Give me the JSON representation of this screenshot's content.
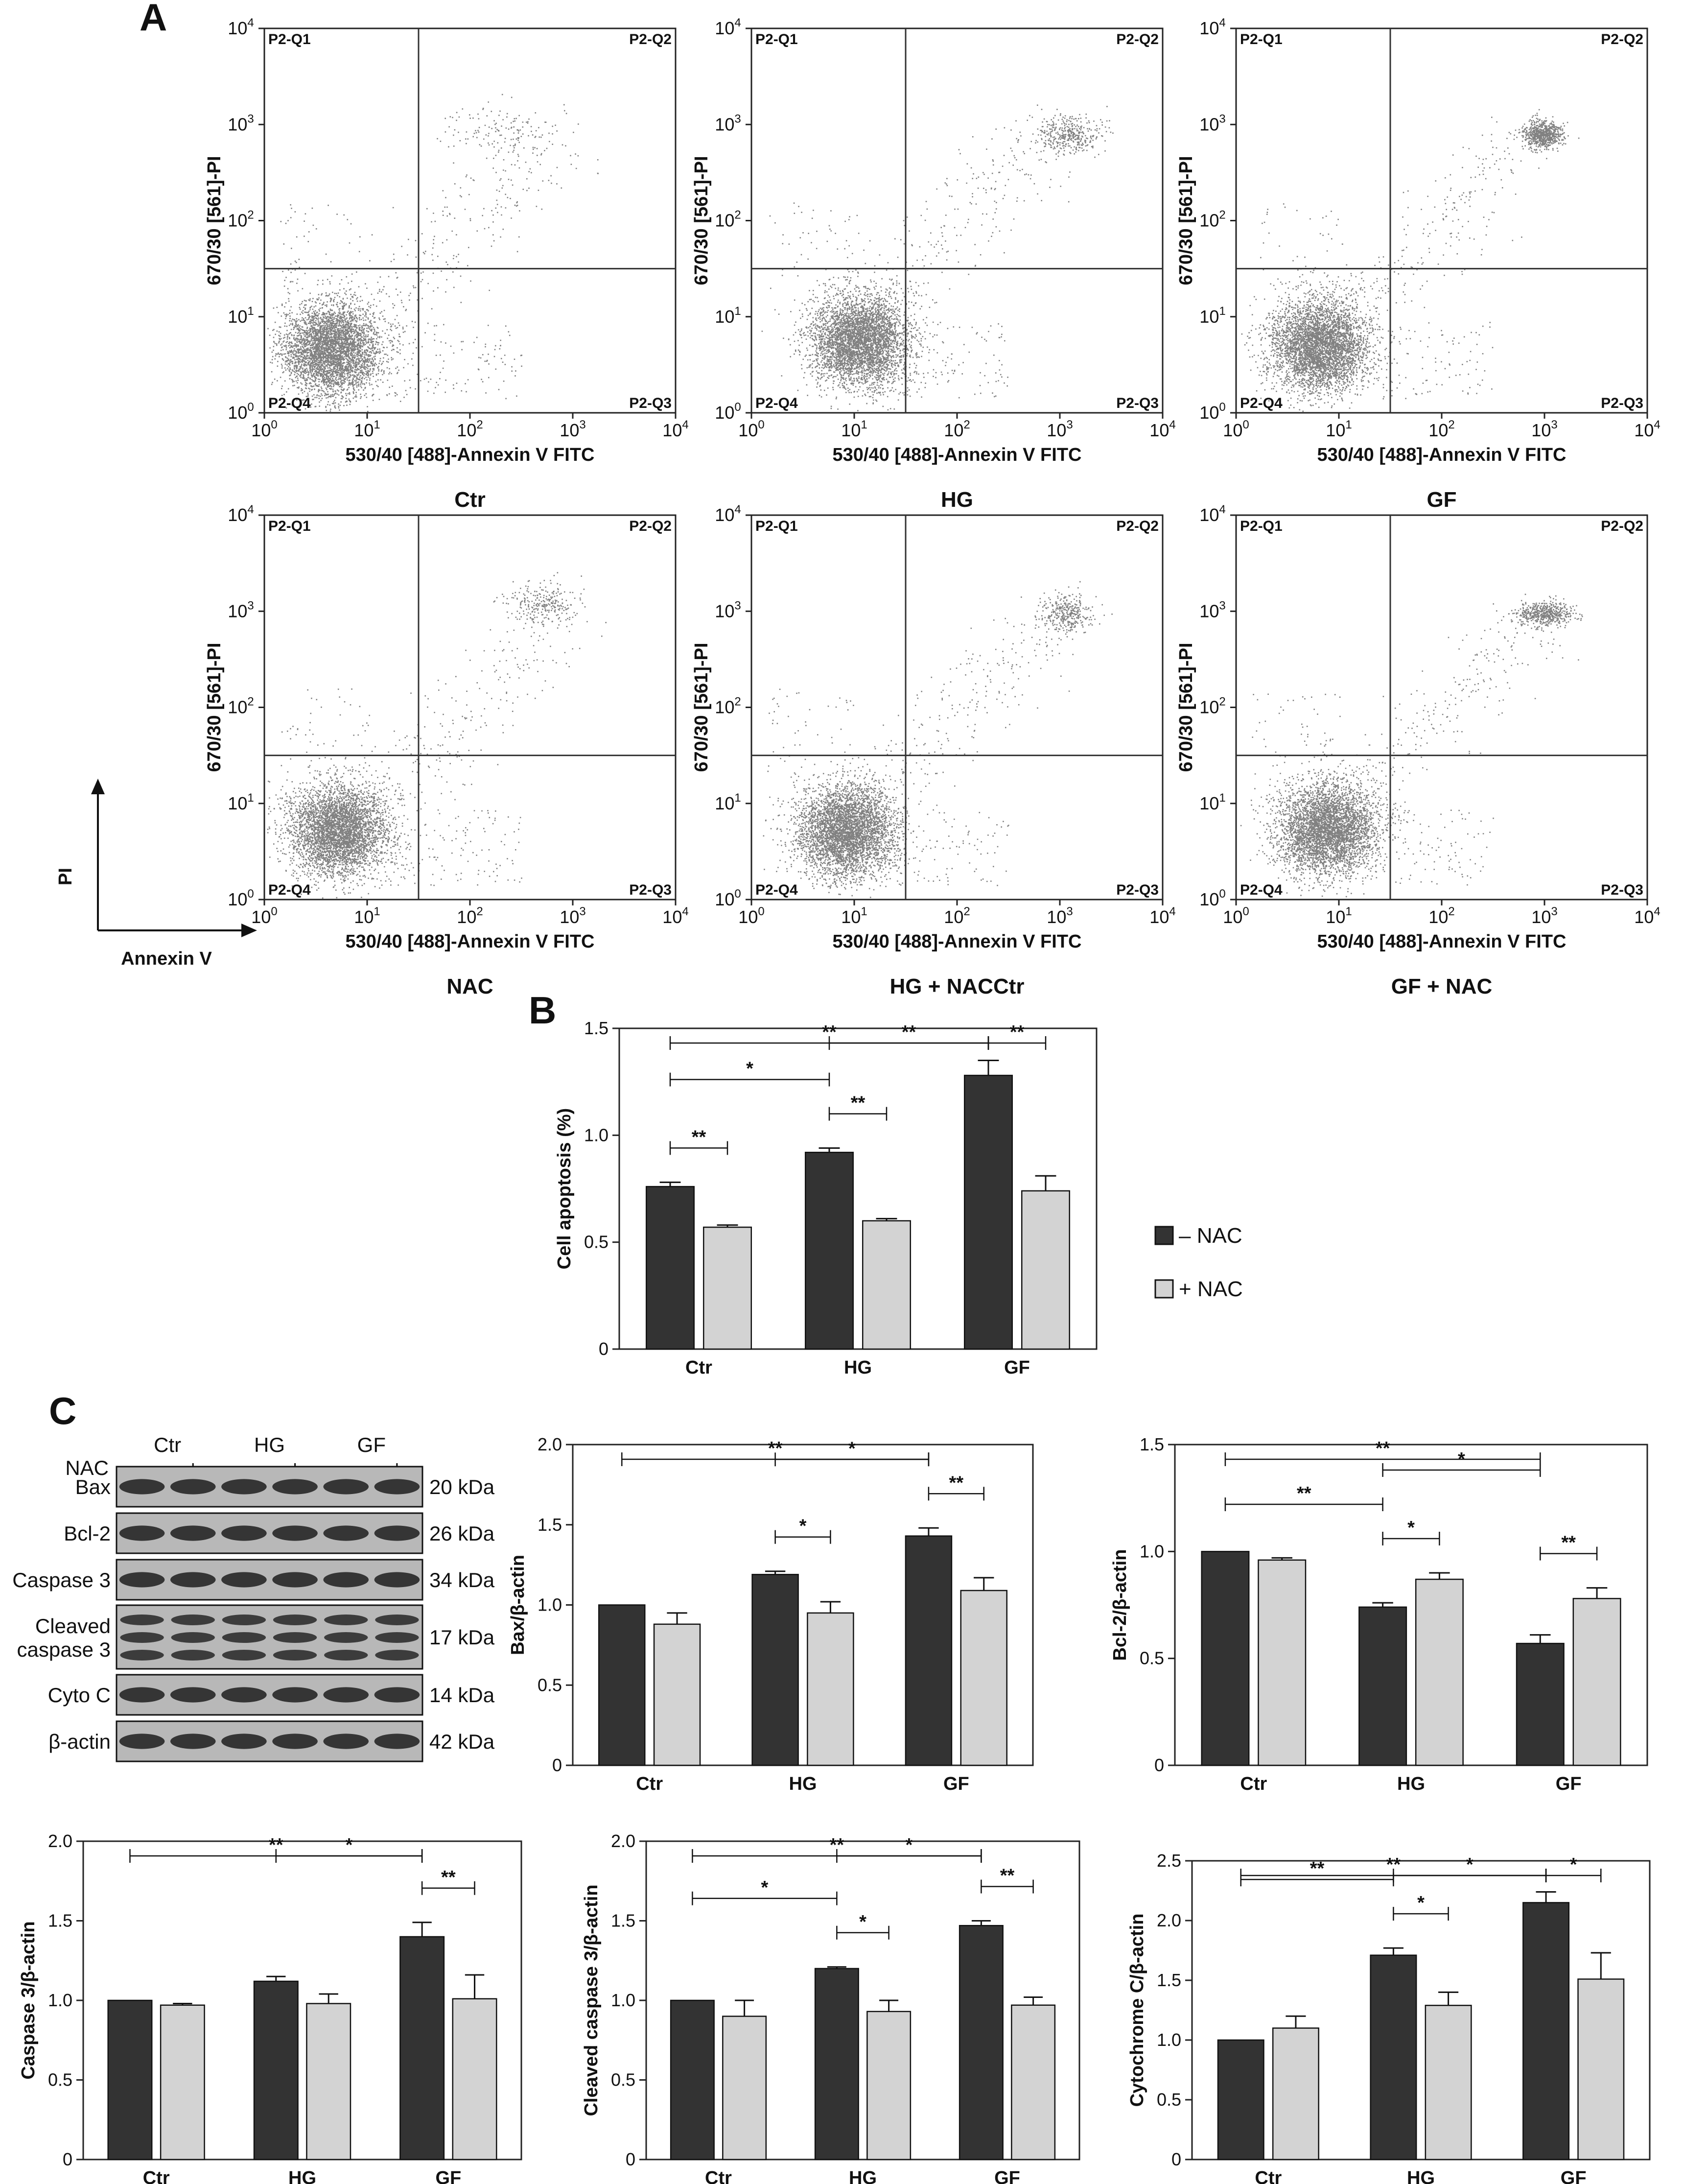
{
  "panel_labels": {
    "a": "A",
    "b": "B",
    "c": "C"
  },
  "colors": {
    "minus_nac": "#333333",
    "plus_nac": "#d3d3d3",
    "axis": "#222222"
  },
  "flow": {
    "xlabel": "530/40 [488]-Annexin V FITC",
    "ylabel": "670/30 [561]-PI",
    "tick_base": "10",
    "tick_exps": [
      "0",
      "1",
      "2",
      "3",
      "4"
    ],
    "quadrants": {
      "q1": "P2-Q1",
      "q2": "P2-Q2",
      "q3": "P2-Q3",
      "q4": "P2-Q4"
    },
    "samples": [
      {
        "caption": "Ctr"
      },
      {
        "caption": "HG"
      },
      {
        "caption": "GF"
      },
      {
        "caption": "NAC"
      },
      {
        "caption": "HG + NACCtr"
      },
      {
        "caption": "GF + NAC"
      }
    ],
    "axes_guide": {
      "y": "PI",
      "x": "Annexin V"
    }
  },
  "legend": {
    "minus": "– NAC",
    "plus": "+ NAC"
  },
  "blot": {
    "groups": [
      "Ctr",
      "HG",
      "GF"
    ],
    "nac_label": "NAC",
    "signs": [
      "–",
      "+",
      "–",
      "+",
      "–",
      "+"
    ],
    "rows": [
      {
        "label": "Bax",
        "kda": "20 kDa"
      },
      {
        "label": "Bcl-2",
        "kda": "26 kDa"
      },
      {
        "label": "Caspase 3",
        "kda": "34 kDa"
      },
      {
        "label": "Cleaved caspase 3",
        "label_line1": "Cleaved",
        "label_line2": "caspase 3",
        "kda": "17 kDa"
      },
      {
        "label": "Cyto C",
        "kda": "14 kDa"
      },
      {
        "label": "β-actin",
        "kda": "42 kDa"
      }
    ]
  },
  "chart_data": [
    {
      "type": "bar",
      "title": "",
      "ylabel": "Cell apoptosis (%)",
      "categories": [
        "Ctr",
        "HG",
        "GF"
      ],
      "ylim": [
        0,
        1.5
      ],
      "yticks": [
        "0",
        "0.5",
        "1.0",
        "1.5"
      ],
      "series": [
        {
          "name": "– NAC",
          "values": [
            0.76,
            0.92,
            1.28
          ],
          "errors": [
            0.02,
            0.02,
            0.07
          ]
        },
        {
          "name": "+ NAC",
          "values": [
            0.57,
            0.6,
            0.74
          ],
          "errors": [
            0.01,
            0.01,
            0.07
          ]
        }
      ],
      "significance": [
        {
          "from": "Ctr|-",
          "to": "GF|-",
          "label": "**"
        },
        {
          "from": "HG|-",
          "to": "GF|-",
          "label": "**"
        },
        {
          "from": "GF|-",
          "to": "GF|+",
          "label": "**"
        },
        {
          "from": "Ctr|-",
          "to": "HG|-",
          "label": "*"
        },
        {
          "from": "HG|-",
          "to": "HG|+",
          "label": "**"
        },
        {
          "from": "Ctr|-",
          "to": "Ctr|+",
          "label": "**"
        }
      ]
    },
    {
      "type": "bar",
      "title": "",
      "ylabel": "Bax/β-actin",
      "categories": [
        "Ctr",
        "HG",
        "GF"
      ],
      "ylim": [
        0,
        2.0
      ],
      "yticks": [
        "0",
        "0.5",
        "1.0",
        "1.5",
        "2.0"
      ],
      "series": [
        {
          "name": "– NAC",
          "values": [
            1.0,
            1.19,
            1.43
          ],
          "errors": [
            0.0,
            0.02,
            0.05
          ]
        },
        {
          "name": "+ NAC",
          "values": [
            0.88,
            0.95,
            1.09
          ],
          "errors": [
            0.07,
            0.07,
            0.08
          ]
        }
      ],
      "significance": [
        {
          "from": "Ctr|-",
          "to": "GF|-",
          "label": "**"
        },
        {
          "from": "HG|-",
          "to": "GF|-",
          "label": "*"
        },
        {
          "from": "GF|-",
          "to": "GF|+",
          "label": "**"
        },
        {
          "from": "HG|-",
          "to": "HG|+",
          "label": "*"
        }
      ]
    },
    {
      "type": "bar",
      "title": "",
      "ylabel": "Bcl-2/β-actin",
      "categories": [
        "Ctr",
        "HG",
        "GF"
      ],
      "ylim": [
        0,
        1.5
      ],
      "yticks": [
        "0",
        "0.5",
        "1.0",
        "1.5"
      ],
      "series": [
        {
          "name": "– NAC",
          "values": [
            1.0,
            0.74,
            0.57
          ],
          "errors": [
            0.0,
            0.02,
            0.04
          ]
        },
        {
          "name": "+ NAC",
          "values": [
            0.96,
            0.87,
            0.78
          ],
          "errors": [
            0.01,
            0.03,
            0.05
          ]
        }
      ],
      "significance": [
        {
          "from": "Ctr|-",
          "to": "GF|-",
          "label": "**"
        },
        {
          "from": "Ctr|-",
          "to": "HG|-",
          "label": "**"
        },
        {
          "from": "HG|-",
          "to": "GF|-",
          "label": "*"
        },
        {
          "from": "HG|-",
          "to": "HG|+",
          "label": "*"
        },
        {
          "from": "GF|-",
          "to": "GF|+",
          "label": "**"
        }
      ]
    },
    {
      "type": "bar",
      "title": "",
      "ylabel": "Caspase 3/β-actin",
      "categories": [
        "Ctr",
        "HG",
        "GF"
      ],
      "ylim": [
        0,
        2.0
      ],
      "yticks": [
        "0",
        "0.5",
        "1.0",
        "1.5",
        "2.0"
      ],
      "series": [
        {
          "name": "– NAC",
          "values": [
            1.0,
            1.12,
            1.4
          ],
          "errors": [
            0.0,
            0.03,
            0.09
          ]
        },
        {
          "name": "+ NAC",
          "values": [
            0.97,
            0.98,
            1.01
          ],
          "errors": [
            0.01,
            0.06,
            0.15
          ]
        }
      ],
      "significance": [
        {
          "from": "Ctr|-",
          "to": "GF|-",
          "label": "**"
        },
        {
          "from": "HG|-",
          "to": "GF|-",
          "label": "*"
        },
        {
          "from": "GF|-",
          "to": "GF|+",
          "label": "**"
        }
      ]
    },
    {
      "type": "bar",
      "title": "",
      "ylabel": "Cleaved caspase 3/β-actin",
      "categories": [
        "Ctr",
        "HG",
        "GF"
      ],
      "ylim": [
        0,
        2.0
      ],
      "yticks": [
        "0",
        "0.5",
        "1.0",
        "1.5",
        "2.0"
      ],
      "series": [
        {
          "name": "– NAC",
          "values": [
            1.0,
            1.2,
            1.47
          ],
          "errors": [
            0.0,
            0.01,
            0.03
          ]
        },
        {
          "name": "+ NAC",
          "values": [
            0.9,
            0.93,
            0.97
          ],
          "errors": [
            0.1,
            0.07,
            0.05
          ]
        }
      ],
      "significance": [
        {
          "from": "Ctr|-",
          "to": "GF|-",
          "label": "**"
        },
        {
          "from": "HG|-",
          "to": "GF|-",
          "label": "*"
        },
        {
          "from": "GF|-",
          "to": "GF|+",
          "label": "**"
        },
        {
          "from": "Ctr|-",
          "to": "HG|-",
          "label": "*"
        },
        {
          "from": "HG|-",
          "to": "HG|+",
          "label": "*"
        }
      ]
    },
    {
      "type": "bar",
      "title": "",
      "ylabel": "Cytochrome C/β-actin",
      "categories": [
        "Ctr",
        "HG",
        "GF"
      ],
      "ylim": [
        0,
        2.5
      ],
      "yticks": [
        "0",
        "0.5",
        "1.0",
        "1.5",
        "2.0",
        "2.5"
      ],
      "series": [
        {
          "name": "– NAC",
          "values": [
            1.0,
            1.71,
            2.15
          ],
          "errors": [
            0.0,
            0.06,
            0.09
          ]
        },
        {
          "name": "+ NAC",
          "values": [
            1.1,
            1.29,
            1.51
          ],
          "errors": [
            0.1,
            0.11,
            0.22
          ]
        }
      ],
      "significance": [
        {
          "from": "Ctr|-",
          "to": "GF|-",
          "label": "**"
        },
        {
          "from": "HG|-",
          "to": "GF|-",
          "label": "*"
        },
        {
          "from": "GF|-",
          "to": "GF|+",
          "label": "*"
        },
        {
          "from": "Ctr|-",
          "to": "HG|-",
          "label": "**"
        },
        {
          "from": "HG|-",
          "to": "HG|+",
          "label": "*"
        }
      ]
    }
  ]
}
